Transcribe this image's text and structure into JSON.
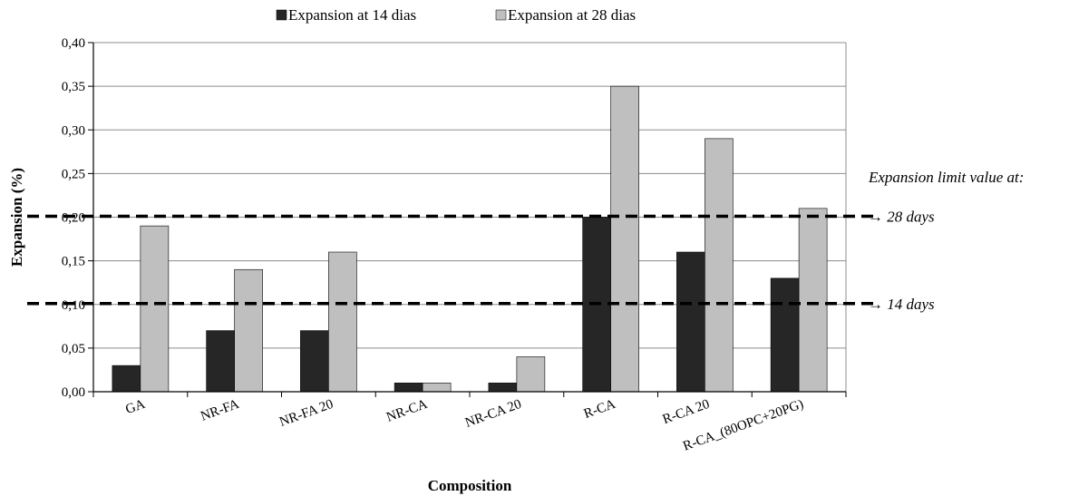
{
  "chart_data": {
    "type": "bar",
    "xlabel": "Composition",
    "ylabel": "Expansion (%)",
    "ylim": [
      0,
      0.4
    ],
    "yticks": [
      0.0,
      0.05,
      0.1,
      0.15,
      0.2,
      0.25,
      0.3,
      0.35,
      0.4
    ],
    "ytick_labels": [
      "0,00",
      "0,05",
      "0,10",
      "0,15",
      "0,20",
      "0,25",
      "0,30",
      "0,35",
      "0,40"
    ],
    "grid": true,
    "legend_position": "top",
    "categories": [
      "GA",
      "NR-FA",
      "NR-FA 20",
      "NR-CA",
      "NR-CA 20",
      "R-CA",
      "R-CA 20",
      "R-CA_(80OPC+20PG)"
    ],
    "series": [
      {
        "name": "Expansion at 14 dias",
        "color": "#262626",
        "values": [
          0.03,
          0.07,
          0.07,
          0.01,
          0.01,
          0.2,
          0.16,
          0.13
        ]
      },
      {
        "name": "Expansion at 28 dias",
        "color": "#bfbfbf",
        "values": [
          0.19,
          0.14,
          0.16,
          0.01,
          0.04,
          0.35,
          0.29,
          0.21
        ]
      }
    ],
    "limit_lines": [
      {
        "value": 0.2,
        "label": "→ 28 days"
      },
      {
        "value": 0.1,
        "label": "→ 14 days"
      }
    ],
    "annotation_title": "Expansion limit value at:"
  }
}
